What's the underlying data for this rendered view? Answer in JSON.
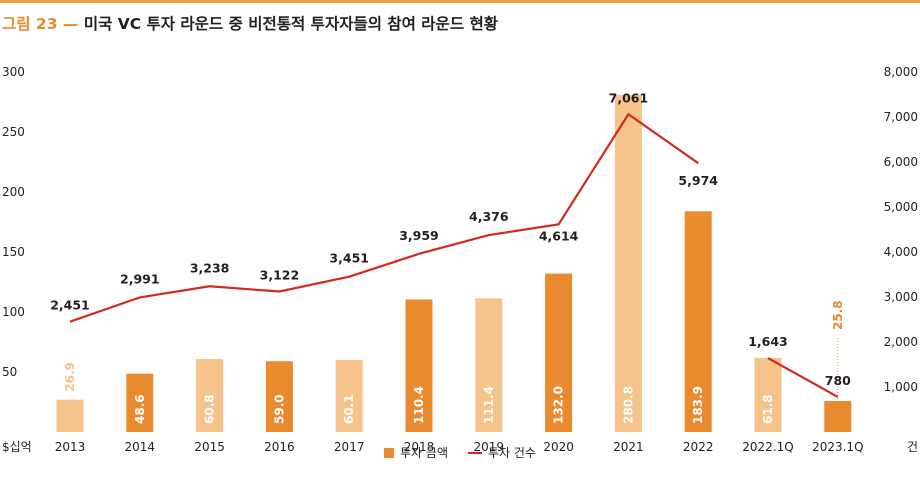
{
  "figure": {
    "label": "그림 23",
    "dash": "—",
    "title": "미국 VC 투자 라운드 중 비전통적 투자자들의 참여 라운드 현황"
  },
  "colors": {
    "bar_dark": "#ea8a2e",
    "bar_light": "#f6c38b",
    "line": "#d32a20",
    "accent": "#ea8a2e"
  },
  "chart_data": {
    "type": "bar",
    "categories": [
      "2013",
      "2014",
      "2015",
      "2016",
      "2017",
      "2018",
      "2019",
      "2020",
      "2021",
      "2022",
      "2022.1Q",
      "2023.1Q"
    ],
    "series": [
      {
        "name": "투자 금액",
        "type": "bar",
        "axis": "left",
        "values": [
          26.9,
          48.6,
          60.8,
          59.0,
          60.1,
          110.4,
          111.4,
          132.0,
          280.8,
          183.9,
          61.8,
          25.8
        ],
        "labels": [
          "26.9",
          "48.6",
          "60.8",
          "59.0",
          "60.1",
          "110.4",
          "111.4",
          "132.0",
          "280.8",
          "183.9",
          "61.8",
          "25.8"
        ],
        "shade": [
          "light",
          "dark",
          "light",
          "dark",
          "light",
          "dark",
          "light",
          "dark",
          "light",
          "dark",
          "light",
          "dark"
        ]
      },
      {
        "name": "투자 건수",
        "type": "line",
        "axis": "right",
        "values": [
          2451,
          2991,
          3238,
          3122,
          3451,
          3959,
          4376,
          4614,
          7061,
          5974,
          1643,
          780
        ],
        "labels": [
          "2,451",
          "2,991",
          "3,238",
          "3,122",
          "3,451",
          "3,959",
          "4,376",
          "4,614",
          "7,061",
          "5,974",
          "1,643",
          "780"
        ]
      }
    ],
    "y_left": {
      "ticks": [
        "300",
        "250",
        "200",
        "150",
        "100",
        "50"
      ],
      "tick_values": [
        300,
        250,
        200,
        150,
        100,
        50
      ],
      "range": [
        0,
        300
      ],
      "unit": "$십억"
    },
    "y_right": {
      "ticks": [
        "8,000",
        "7,000",
        "6,000",
        "5,000",
        "4,000",
        "3,000",
        "2,000",
        "1,000"
      ],
      "tick_values": [
        8000,
        7000,
        6000,
        5000,
        4000,
        3000,
        2000,
        1000
      ],
      "range": [
        0,
        8000
      ],
      "unit": "건"
    },
    "legend_position": "bottom-center",
    "grid": false
  },
  "legend": {
    "bar_label": "투자 금액",
    "line_label": "투자 건수"
  }
}
